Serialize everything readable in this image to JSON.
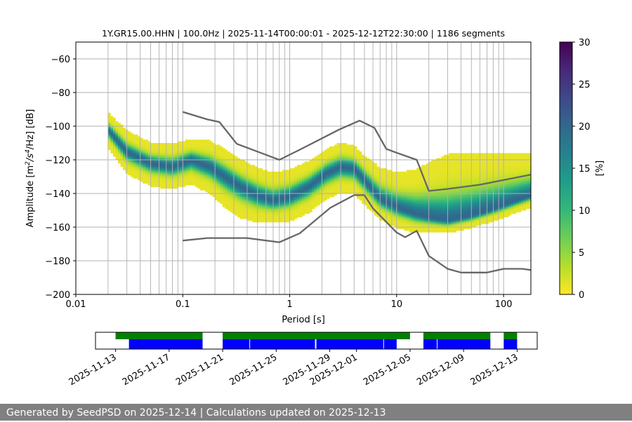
{
  "chart_data": [
    {
      "type": "heatmap",
      "title": "1Y.GR15.00.HHN | 100.0Hz | 2025-11-14T00:00:01 - 2025-12-12T22:30:00 | 1186 segments",
      "xlabel": "Period [s]",
      "ylabel_parts": {
        "base": "Amplitude [m",
        "sup1": "2",
        "mid": "/s",
        "sup2": "4",
        "end": "/Hz] [dB]"
      },
      "x_scale": "log",
      "xlim": [
        0.01,
        180
      ],
      "ylim": [
        -200,
        -50
      ],
      "x_ticks": [
        0.01,
        0.1,
        1,
        10,
        100
      ],
      "x_tick_labels": [
        "0.01",
        "0.1",
        "1",
        "10",
        "100"
      ],
      "y_ticks": [
        -200,
        -180,
        -160,
        -140,
        -120,
        -100,
        -80,
        -60
      ],
      "y_tick_labels": [
        "−200",
        "−180",
        "−160",
        "−140",
        "−120",
        "−100",
        "−80",
        "−60"
      ],
      "grid": true,
      "colorbar": {
        "label": "[%]",
        "range": [
          0,
          30
        ],
        "ticks": [
          0,
          5,
          10,
          15,
          20,
          25,
          30
        ],
        "tick_labels": [
          "0",
          "5",
          "10",
          "15",
          "20",
          "25",
          "30"
        ],
        "colormap": [
          "#fde725",
          "#b5de2b",
          "#6ece58",
          "#35b779",
          "#1f9e89",
          "#26828e",
          "#31688e",
          "#3e4989",
          "#482878",
          "#440154"
        ]
      },
      "psd_mode": {
        "period": [
          0.02,
          0.03,
          0.05,
          0.08,
          0.12,
          0.18,
          0.25,
          0.35,
          0.5,
          0.7,
          1.0,
          1.5,
          2.2,
          3.0,
          4.0,
          5.0,
          7.0,
          10,
          15,
          20,
          30,
          50,
          80,
          120,
          180
        ],
        "db": [
          -102,
          -115,
          -122,
          -124,
          -120,
          -124,
          -130,
          -136,
          -141,
          -144,
          -142,
          -136,
          -128,
          -124,
          -125,
          -132,
          -143,
          -148,
          -152,
          -154,
          -156,
          -153,
          -149,
          -145,
          -141
        ]
      },
      "psd_spread": {
        "upper": [
          -92,
          -103,
          -110,
          -111,
          -108,
          -109,
          -114,
          -120,
          -125,
          -128,
          -126,
          -121,
          -114,
          -110,
          -112,
          -118,
          -125,
          -128,
          -126,
          -122,
          -117,
          -116,
          -116,
          -116,
          -116
        ],
        "lower": [
          -112,
          -128,
          -135,
          -137,
          -134,
          -140,
          -148,
          -154,
          -157,
          -157,
          -156,
          -151,
          -143,
          -139,
          -140,
          -146,
          -155,
          -160,
          -163,
          -163,
          -163,
          -160,
          -156,
          -152,
          -148
        ]
      },
      "series": [
        {
          "name": "",
          "color": "#666666",
          "x": [
            0.1,
            0.17,
            0.22,
            0.32,
            0.8,
            1.24,
            2.9,
            4.5,
            6.2,
            8.0,
            10,
            15.4,
            20,
            30,
            60,
            180
          ],
          "y": [
            -91.5,
            -96.0,
            -97.5,
            -110.5,
            -120,
            -114,
            -102,
            -96.7,
            -101,
            -113.5,
            -115.8,
            -120,
            -138.5,
            -137.3,
            -134.8,
            -128.8
          ]
        },
        {
          "name": "",
          "color": "#666666",
          "x": [
            0.1,
            0.17,
            0.4,
            0.8,
            1.24,
            2.4,
            4.0,
            5.0,
            6.0,
            10,
            12,
            15.4,
            20,
            30,
            40,
            70,
            100,
            150,
            180
          ],
          "y": [
            -168,
            -166.5,
            -166.5,
            -169,
            -163.7,
            -148.5,
            -141,
            -141,
            -148.8,
            -163.2,
            -166,
            -162.2,
            -177.1,
            -184.8,
            -187,
            -187,
            -184.8,
            -184.8,
            -185.5
          ]
        }
      ]
    },
    {
      "type": "timeline",
      "x_tick_labels": [
        "2025-11-13",
        "2025-11-17",
        "2025-11-21",
        "2025-11-25",
        "2025-11-29",
        "2025-12-01",
        "2025-12-05",
        "2025-12-09",
        "2025-12-13"
      ],
      "x_tick_days": [
        0,
        4,
        8,
        12,
        16,
        18,
        22,
        26,
        30
      ],
      "xlim_days": [
        -1.5,
        31.5
      ],
      "colors": {
        "upper": "#008000",
        "lower": "#0000ff"
      },
      "upper_segments": [
        [
          0,
          6.5
        ],
        [
          8,
          22
        ],
        [
          23,
          28
        ],
        [
          29,
          30
        ]
      ],
      "lower_segments": [
        [
          1,
          6.5
        ],
        [
          8,
          10
        ],
        [
          10.05,
          14.9
        ],
        [
          15,
          20
        ],
        [
          20.05,
          21
        ],
        [
          23,
          24
        ],
        [
          24.05,
          28
        ],
        [
          29,
          30
        ]
      ]
    }
  ],
  "footer": {
    "text": "Generated by SeedPSD on 2025-12-14 | Calculations updated on 2025-12-13"
  }
}
